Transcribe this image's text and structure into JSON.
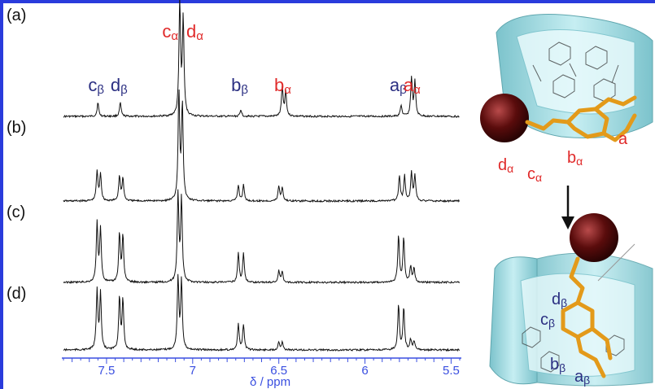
{
  "chart_data": {
    "type": "line",
    "x_axis": {
      "title": "δ / ppm",
      "range": [
        7.75,
        5.45
      ],
      "reversed": true,
      "ticks": [
        7.5,
        7,
        6.5,
        6,
        5.5
      ],
      "tick_labels": [
        "7.5",
        "7",
        "6.5",
        "6",
        "5.5"
      ]
    },
    "series": [
      {
        "panel": "(a)",
        "peaks": [
          {
            "ppm": 7.55,
            "height": 0.12
          },
          {
            "ppm": 7.42,
            "height": 0.12
          },
          {
            "ppm": 7.075,
            "height": 1.0
          },
          {
            "ppm": 7.055,
            "height": 0.85
          },
          {
            "ppm": 6.72,
            "height": 0.06
          },
          {
            "ppm": 6.48,
            "height": 0.26
          },
          {
            "ppm": 6.46,
            "height": 0.22
          },
          {
            "ppm": 5.79,
            "height": 0.1
          },
          {
            "ppm": 5.73,
            "height": 0.34
          },
          {
            "ppm": 5.71,
            "height": 0.3
          }
        ],
        "peak_labels": [
          {
            "letter": "c",
            "sub": "β",
            "ppm": 7.55,
            "color": "navy"
          },
          {
            "letter": "d",
            "sub": "β",
            "ppm": 7.42,
            "color": "navy"
          },
          {
            "letter": "c",
            "sub": "α",
            "ppm": 7.12,
            "color": "red"
          },
          {
            "letter": "d",
            "sub": "α",
            "ppm": 6.98,
            "color": "red"
          },
          {
            "letter": "b",
            "sub": "β",
            "ppm": 6.72,
            "color": "navy"
          },
          {
            "letter": "b",
            "sub": "α",
            "ppm": 6.47,
            "color": "red"
          },
          {
            "letter": "a",
            "sub": "β",
            "ppm": 5.8,
            "color": "navy"
          },
          {
            "letter": "a",
            "sub": "α",
            "ppm": 5.72,
            "color": "red"
          }
        ]
      },
      {
        "panel": "(b)",
        "peaks": [
          {
            "ppm": 7.555,
            "height": 0.26
          },
          {
            "ppm": 7.535,
            "height": 0.24
          },
          {
            "ppm": 7.425,
            "height": 0.22
          },
          {
            "ppm": 7.405,
            "height": 0.2
          },
          {
            "ppm": 7.08,
            "height": 0.95
          },
          {
            "ppm": 7.06,
            "height": 0.85
          },
          {
            "ppm": 6.735,
            "height": 0.14
          },
          {
            "ppm": 6.705,
            "height": 0.14
          },
          {
            "ppm": 6.5,
            "height": 0.13
          },
          {
            "ppm": 6.48,
            "height": 0.12
          },
          {
            "ppm": 5.8,
            "height": 0.22
          },
          {
            "ppm": 5.77,
            "height": 0.22
          },
          {
            "ppm": 5.73,
            "height": 0.25
          },
          {
            "ppm": 5.71,
            "height": 0.22
          }
        ]
      },
      {
        "panel": "(c)",
        "peaks": [
          {
            "ppm": 7.555,
            "height": 0.6
          },
          {
            "ppm": 7.535,
            "height": 0.55
          },
          {
            "ppm": 7.425,
            "height": 0.5
          },
          {
            "ppm": 7.405,
            "height": 0.48
          },
          {
            "ppm": 7.085,
            "height": 0.9
          },
          {
            "ppm": 7.065,
            "height": 0.85
          },
          {
            "ppm": 6.735,
            "height": 0.3
          },
          {
            "ppm": 6.705,
            "height": 0.3
          },
          {
            "ppm": 6.5,
            "height": 0.12
          },
          {
            "ppm": 6.48,
            "height": 0.11
          },
          {
            "ppm": 5.805,
            "height": 0.48
          },
          {
            "ppm": 5.775,
            "height": 0.46
          },
          {
            "ppm": 5.735,
            "height": 0.16
          },
          {
            "ppm": 5.715,
            "height": 0.14
          }
        ]
      },
      {
        "panel": "(d)",
        "peaks": [
          {
            "ppm": 7.555,
            "height": 0.7
          },
          {
            "ppm": 7.535,
            "height": 0.65
          },
          {
            "ppm": 7.425,
            "height": 0.62
          },
          {
            "ppm": 7.405,
            "height": 0.58
          },
          {
            "ppm": 7.085,
            "height": 0.85
          },
          {
            "ppm": 7.065,
            "height": 0.8
          },
          {
            "ppm": 6.735,
            "height": 0.3
          },
          {
            "ppm": 6.705,
            "height": 0.3
          },
          {
            "ppm": 6.5,
            "height": 0.1
          },
          {
            "ppm": 6.48,
            "height": 0.09
          },
          {
            "ppm": 5.805,
            "height": 0.52
          },
          {
            "ppm": 5.775,
            "height": 0.5
          },
          {
            "ppm": 5.735,
            "height": 0.12
          },
          {
            "ppm": 5.715,
            "height": 0.1
          }
        ]
      }
    ]
  },
  "diagram": {
    "top_labels": [
      {
        "letter": "a",
        "sub": "",
        "color": "red"
      },
      {
        "letter": "b",
        "sub": "α",
        "color": "red"
      },
      {
        "letter": "c",
        "sub": "α",
        "color": "red"
      },
      {
        "letter": "d",
        "sub": "α",
        "color": "red"
      }
    ],
    "bottom_labels": [
      {
        "letter": "d",
        "sub": "β",
        "color": "navy"
      },
      {
        "letter": "c",
        "sub": "β",
        "color": "navy"
      },
      {
        "letter": "b",
        "sub": "β",
        "color": "navy"
      },
      {
        "letter": "a",
        "sub": "β",
        "color": "navy"
      }
    ]
  },
  "colors": {
    "axis": "#3a4fe0",
    "frame": "#2a3bdc",
    "alpha": "#e02a2a",
    "beta": "#2b2f82",
    "cyclodextrin": "#9fd6dc",
    "guest": "#e39a1a",
    "sphere": "#5a0c0c"
  }
}
